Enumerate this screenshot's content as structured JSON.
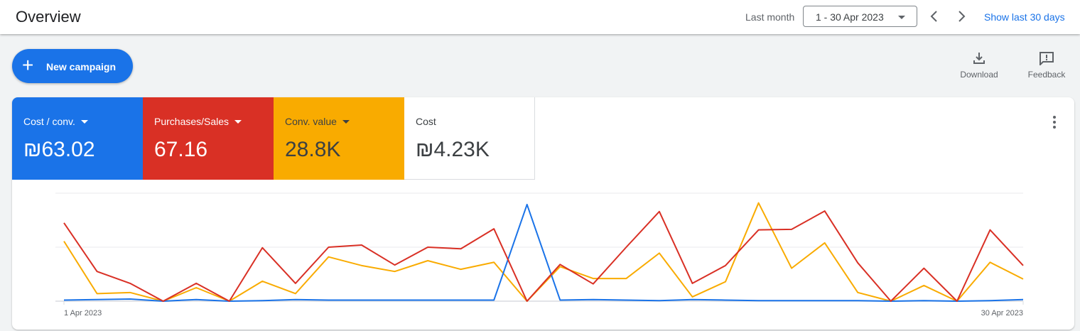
{
  "header": {
    "title": "Overview",
    "range_label": "Last month",
    "date_range": "1 - 30 Apr 2023",
    "show_last": "Show last 30 days"
  },
  "actions": {
    "new_campaign": "New campaign",
    "download": "Download",
    "feedback": "Feedback"
  },
  "metrics": [
    {
      "name": "Cost / conv.",
      "value": "₪63.02",
      "color": "#1a73e8",
      "text_color": "#ffffff",
      "dropdown": true
    },
    {
      "name": "Purchases/Sales",
      "value": "67.16",
      "color": "#d93025",
      "text_color": "#ffffff",
      "dropdown": true
    },
    {
      "name": "Conv. value",
      "value": "28.8K",
      "color": "#f9ab00",
      "text_color": "#3c4043",
      "dropdown": true
    },
    {
      "name": "Cost",
      "value": "₪4.23K",
      "color": "#ffffff",
      "text_color": "#3c4043",
      "dropdown": false
    }
  ],
  "chart_data": {
    "type": "line",
    "x_start_label": "1 Apr 2023",
    "x_end_label": "30 Apr 2023",
    "x": [
      1,
      2,
      3,
      4,
      5,
      6,
      7,
      8,
      9,
      10,
      11,
      12,
      13,
      14,
      15,
      16,
      17,
      18,
      19,
      20,
      21,
      22,
      23,
      24,
      25,
      26,
      27,
      28,
      29,
      30
    ],
    "ylim": [
      0,
      2
    ],
    "grid": true,
    "y_scale_note": "no y-axis labels shown; values relative to gridlines",
    "series": [
      {
        "name": "Cost / conv.",
        "color": "#1a73e8",
        "values": [
          0.02,
          0.03,
          0.04,
          0,
          0.03,
          0,
          0.01,
          0.03,
          0.02,
          0.02,
          0.02,
          0.02,
          0.02,
          0.02,
          1.79,
          0.02,
          0.03,
          0.02,
          0.01,
          0.03,
          0.02,
          0.01,
          0.01,
          0.01,
          0.01,
          0,
          0.01,
          0,
          0.01,
          0.03
        ]
      },
      {
        "name": "Purchases/Sales",
        "color": "#d93025",
        "values": [
          1.45,
          0.55,
          0.33,
          0,
          0.33,
          0,
          0.99,
          0.33,
          1.0,
          1.04,
          0.67,
          1.0,
          0.97,
          1.34,
          0,
          0.68,
          0.32,
          1.0,
          1.66,
          0.33,
          0.66,
          1.32,
          1.33,
          1.67,
          0.71,
          0,
          0.61,
          0,
          1.32,
          0.66
        ]
      },
      {
        "name": "Conv. value",
        "color": "#f9ab00",
        "values": [
          1.11,
          0.14,
          0.16,
          0,
          0.25,
          0,
          0.37,
          0.14,
          0.82,
          0.66,
          0.55,
          0.75,
          0.59,
          0.72,
          0,
          0.64,
          0.42,
          0.42,
          0.89,
          0.08,
          0.36,
          1.82,
          0.61,
          1.08,
          0.16,
          0,
          0.29,
          0,
          0.72,
          0.41
        ]
      }
    ]
  }
}
